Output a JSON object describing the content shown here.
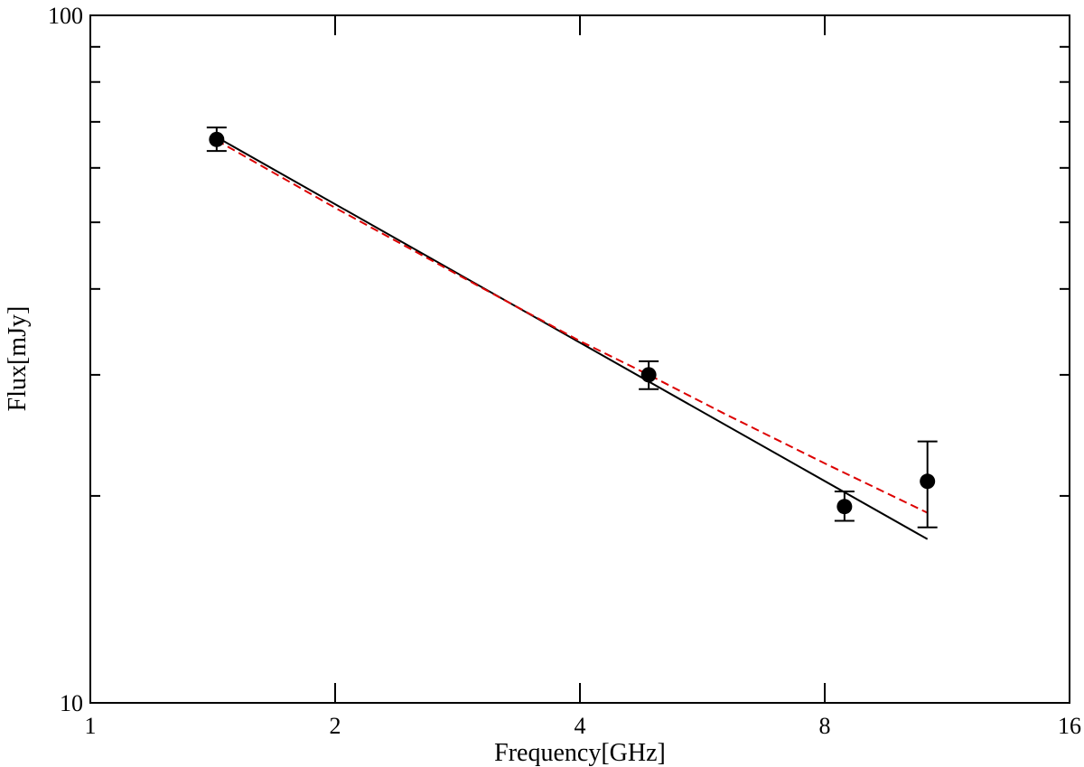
{
  "chart_data": {
    "type": "scatter",
    "xlabel": "Frequency[GHz]",
    "ylabel": "Flux[mJy]",
    "x_scale": "log2",
    "y_scale": "log10",
    "xlim": [
      1,
      16
    ],
    "ylim": [
      10,
      100
    ],
    "x_ticks": [
      1,
      2,
      4,
      8,
      16
    ],
    "x_tick_labels": [
      "1",
      "2",
      "4",
      "8",
      "16"
    ],
    "y_ticks": [
      10,
      100
    ],
    "y_tick_labels": [
      "10",
      "100"
    ],
    "grid": false,
    "series": [
      {
        "kind": "points_with_errorbars",
        "color": "#000000",
        "points": [
          {
            "x": 1.43,
            "y": 66.0,
            "yerr_low": 63.5,
            "yerr_high": 68.7
          },
          {
            "x": 4.86,
            "y": 30.0,
            "yerr_low": 28.6,
            "yerr_high": 31.4
          },
          {
            "x": 8.46,
            "y": 19.3,
            "yerr_low": 18.4,
            "yerr_high": 20.3
          },
          {
            "x": 10.7,
            "y": 21.0,
            "yerr_low": 18.0,
            "yerr_high": 24.0
          }
        ]
      },
      {
        "kind": "line",
        "style": "solid",
        "color": "#000000",
        "x": [
          1.43,
          10.7
        ],
        "y": [
          66.5,
          17.3
        ]
      },
      {
        "kind": "line",
        "style": "dashed",
        "color": "#dd0000",
        "x": [
          1.43,
          2.0,
          3.0,
          4.0,
          4.86,
          6.0,
          8.0,
          10.7
        ],
        "y": [
          65.8,
          52.5,
          40.4,
          33.6,
          30.0,
          26.4,
          22.3,
          18.9
        ]
      }
    ]
  }
}
